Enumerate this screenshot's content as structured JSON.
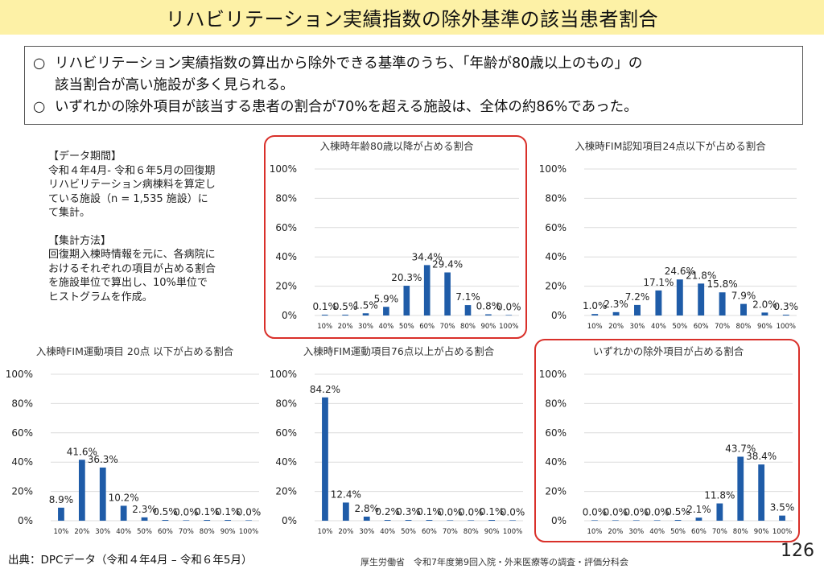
{
  "title": "リハビリテーション実績指数の除外基準の該当患者割合",
  "summary": {
    "bullet1_mark": "○",
    "bullet1_line1": "リハビリテーション実績指数の算出から除外できる基準のうち、「年齢が80歳以上のもの」の",
    "bullet1_line2": "該当割合が高い施設が多く見られる。",
    "bullet2_mark": "○",
    "bullet2": "いずれかの除外項目が該当する患者の割合が70%を超える施設は、全体の約86%であった。"
  },
  "notes": {
    "period_heading": "【データ期間】",
    "period_lines": [
      "令和４年4月- 令和６年5月の回復期",
      "リハビリテーション病棟料を算定し",
      "ている施設（n = 1,535 施設）に",
      "て集計。"
    ],
    "method_heading": "【集計方法】",
    "method_lines": [
      "回復期入棟時情報を元に、各病院に",
      "おけるそれぞれの項目が占める割合",
      "を施設単位で算出し、10%単位で",
      "ヒストグラムを作成。"
    ]
  },
  "footer": {
    "source": "出典：DPCデータ（令和４年4月 – 令和６年5月）",
    "center": "厚生労働省　令和7年度第9回入院・外来医療等の調査・評価分科会",
    "page_number": "126"
  },
  "colors": {
    "bar": "#1f5ca8",
    "highlight": "#d9302a",
    "title_bg": "#fdf1a6"
  },
  "chart_data": [
    {
      "type": "bar",
      "title": "入棟時年齢80歳以降が占める割合",
      "categories": [
        "10%",
        "20%",
        "30%",
        "40%",
        "50%",
        "60%",
        "70%",
        "80%",
        "90%",
        "100%"
      ],
      "values": [
        0.1,
        0.5,
        1.5,
        5.9,
        20.3,
        34.4,
        29.4,
        7.1,
        0.8,
        0.0
      ],
      "labels": [
        "0.1%",
        "0.5%",
        "1.5%",
        "5.9%",
        "20.3%",
        "34.4%",
        "29.4%",
        "7.1%",
        "0.8%",
        "0.0%"
      ],
      "yticks": [
        "0%",
        "20%",
        "40%",
        "60%",
        "80%",
        "100%"
      ],
      "ylim": [
        0,
        100
      ],
      "highlighted": true
    },
    {
      "type": "bar",
      "title": "入棟時FIM認知項目24点以下が占める割合",
      "categories": [
        "10%",
        "20%",
        "30%",
        "40%",
        "50%",
        "60%",
        "70%",
        "80%",
        "90%",
        "100%"
      ],
      "values": [
        1.0,
        2.3,
        7.2,
        17.1,
        24.6,
        21.8,
        15.8,
        7.9,
        2.0,
        0.3
      ],
      "labels": [
        "1.0%",
        "2.3%",
        "7.2%",
        "17.1%",
        "24.6%",
        "21.8%",
        "15.8%",
        "7.9%",
        "2.0%",
        "0.3%"
      ],
      "yticks": [
        "0%",
        "20%",
        "40%",
        "60%",
        "80%",
        "100%"
      ],
      "ylim": [
        0,
        100
      ],
      "highlighted": false
    },
    {
      "type": "bar",
      "title": "入棟時FIM運動項目 20点 以下が占める割合",
      "categories": [
        "10%",
        "20%",
        "30%",
        "40%",
        "50%",
        "60%",
        "70%",
        "80%",
        "90%",
        "100%"
      ],
      "values": [
        8.9,
        41.6,
        36.3,
        10.2,
        2.3,
        0.5,
        0.0,
        0.1,
        0.1,
        0.0
      ],
      "labels": [
        "8.9%",
        "41.6%",
        "36.3%",
        "10.2%",
        "2.3%",
        "0.5%",
        "0.0%",
        "0.1%",
        "0.1%",
        "0.0%"
      ],
      "yticks": [
        "0%",
        "20%",
        "40%",
        "60%",
        "80%",
        "100%"
      ],
      "ylim": [
        0,
        100
      ],
      "highlighted": false
    },
    {
      "type": "bar",
      "title": "入棟時FIM運動項目76点以上が占める割合",
      "categories": [
        "10%",
        "20%",
        "30%",
        "40%",
        "50%",
        "60%",
        "70%",
        "80%",
        "90%",
        "100%"
      ],
      "values": [
        84.2,
        12.4,
        2.8,
        0.2,
        0.3,
        0.1,
        0.0,
        0.0,
        0.1,
        0.0
      ],
      "labels": [
        "84.2%",
        "12.4%",
        "2.8%",
        "0.2%",
        "0.3%",
        "0.1%",
        "0.0%",
        "0.0%",
        "0.1%",
        "0.0%"
      ],
      "yticks": [
        "0%",
        "20%",
        "40%",
        "60%",
        "80%",
        "100%"
      ],
      "ylim": [
        0,
        100
      ],
      "highlighted": false
    },
    {
      "type": "bar",
      "title": "いずれかの除外項目が占める割合",
      "categories": [
        "10%",
        "20%",
        "30%",
        "40%",
        "50%",
        "60%",
        "70%",
        "80%",
        "90%",
        "100%"
      ],
      "values": [
        0.0,
        0.0,
        0.0,
        0.0,
        0.5,
        2.1,
        11.8,
        43.7,
        38.4,
        3.5
      ],
      "labels": [
        "0.0%",
        "0.0%",
        "0.0%",
        "0.0%",
        "0.5%",
        "2.1%",
        "11.8%",
        "43.7%",
        "38.4%",
        "3.5%"
      ],
      "yticks": [
        "0%",
        "20%",
        "40%",
        "60%",
        "80%",
        "100%"
      ],
      "ylim": [
        0,
        100
      ],
      "highlighted": true
    }
  ]
}
